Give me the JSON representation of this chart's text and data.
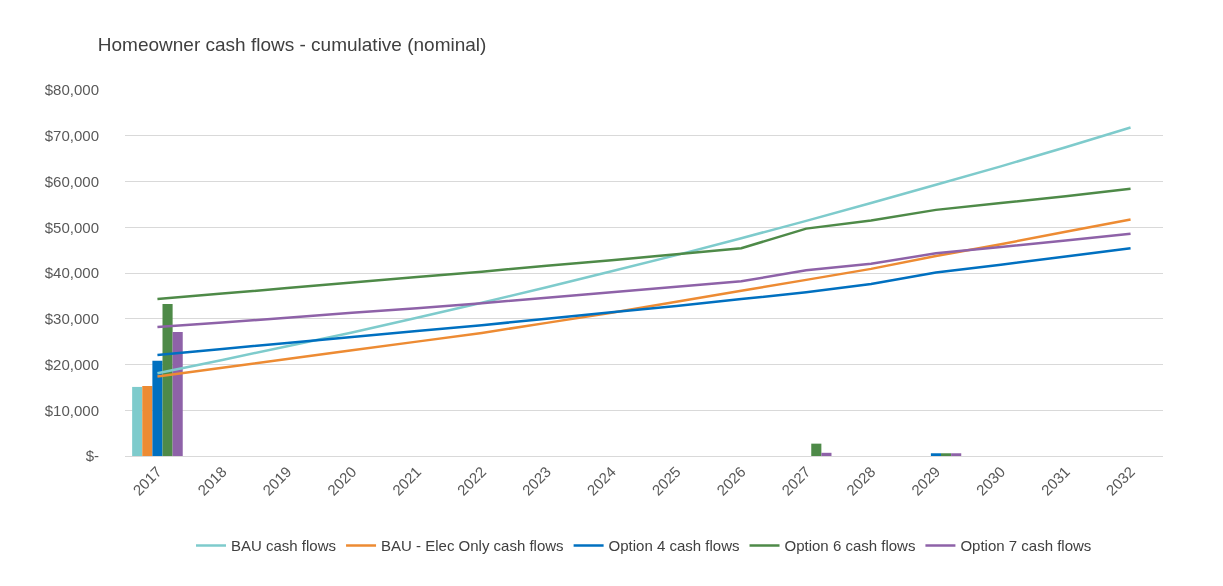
{
  "chart_data": {
    "type": "line",
    "title": "Homeowner cash flows - cumulative (nominal)",
    "categories": [
      "2017",
      "2018",
      "2019",
      "2020",
      "2021",
      "2022",
      "2023",
      "2024",
      "2025",
      "2026",
      "2027",
      "2028",
      "2029",
      "2030",
      "2031",
      "2032"
    ],
    "series": [
      {
        "name": "BAU cash flows",
        "color": "#7ecbcc",
        "values": [
          18100,
          21000,
          24000,
          27000,
          30200,
          33500,
          36900,
          40400,
          43900,
          47600,
          51400,
          55300,
          59300,
          63300,
          67500,
          71800
        ]
      },
      {
        "name": "BAU - Elec Only cash flows",
        "color": "#ed8b33",
        "values": [
          17400,
          19300,
          21200,
          23100,
          25000,
          26900,
          29100,
          31300,
          33700,
          36100,
          38500,
          40900,
          43700,
          46300,
          49000,
          51700
        ]
      },
      {
        "name": "Option 4 cash flows",
        "color": "#0070c0",
        "values": [
          22100,
          23400,
          24700,
          26000,
          27300,
          28600,
          30000,
          31400,
          32800,
          34300,
          35800,
          37600,
          40100,
          41800,
          43600,
          45400
        ]
      },
      {
        "name": "Option 6 cash flows",
        "color": "#4e8a48",
        "values": [
          34300,
          35500,
          36700,
          37900,
          39100,
          40300,
          41600,
          42800,
          44100,
          45400,
          49700,
          51500,
          53800,
          55300,
          56800,
          58400
        ]
      },
      {
        "name": "Option 7 cash flows",
        "color": "#8e62a8",
        "values": [
          28200,
          29200,
          30200,
          31300,
          32300,
          33400,
          34600,
          35800,
          37000,
          38200,
          40600,
          42000,
          44300,
          45700,
          47100,
          48600
        ]
      },
      {
        "type": "bar",
        "color": "#7ecbcc",
        "values": [
          15100,
          null,
          null,
          null,
          null,
          null,
          null,
          null,
          null,
          null,
          null,
          null,
          null,
          null,
          null,
          null
        ]
      },
      {
        "type": "bar",
        "color": "#ed8b33",
        "values": [
          15300,
          null,
          null,
          null,
          null,
          null,
          null,
          null,
          null,
          null,
          null,
          null,
          null,
          null,
          null,
          null
        ]
      },
      {
        "type": "bar",
        "color": "#0070c0",
        "values": [
          20800,
          null,
          null,
          null,
          null,
          null,
          null,
          null,
          null,
          null,
          null,
          null,
          600,
          null,
          null,
          null
        ]
      },
      {
        "type": "bar",
        "color": "#4e8a48",
        "values": [
          33200,
          null,
          null,
          null,
          null,
          null,
          null,
          null,
          null,
          null,
          2700,
          null,
          600,
          null,
          null,
          null
        ]
      },
      {
        "type": "bar",
        "color": "#8e62a8",
        "values": [
          27100,
          null,
          null,
          null,
          null,
          null,
          null,
          null,
          null,
          null,
          700,
          null,
          600,
          null,
          null,
          null
        ]
      }
    ],
    "ylim": [
      0,
      80000
    ],
    "yticks": [
      {
        "value": 0,
        "label": "$-"
      },
      {
        "value": 10000,
        "label": "$10,000"
      },
      {
        "value": 20000,
        "label": "$20,000"
      },
      {
        "value": 30000,
        "label": "$30,000"
      },
      {
        "value": 40000,
        "label": "$40,000"
      },
      {
        "value": 50000,
        "label": "$50,000"
      },
      {
        "value": 60000,
        "label": "$60,000"
      },
      {
        "value": 70000,
        "label": "$70,000"
      },
      {
        "value": 80000,
        "label": "$80,000"
      }
    ],
    "grid": "y",
    "legend": "bottom",
    "marker": "none",
    "line_style": "solid"
  }
}
